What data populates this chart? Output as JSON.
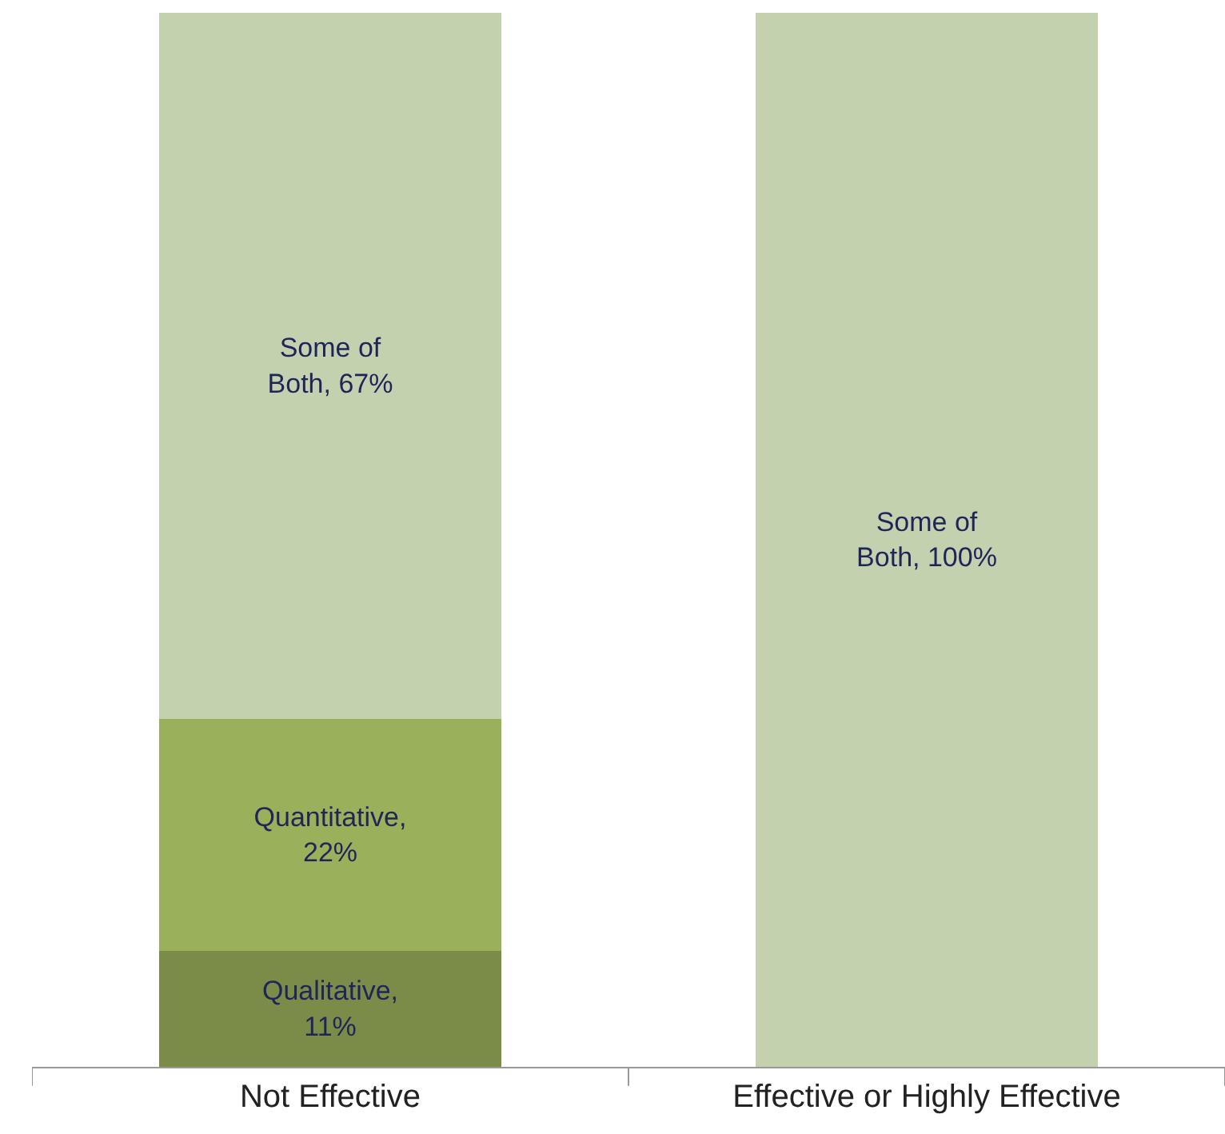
{
  "chart_data": {
    "type": "bar",
    "stacked": true,
    "legend": false,
    "categories": [
      "Not Effective",
      "Effective or Highly Effective"
    ],
    "series": [
      {
        "color": "#7b8c48",
        "values": [
          11,
          null
        ],
        "value_labels": [
          "Qualitative, 11%",
          null
        ]
      },
      {
        "color": "#9bb05a",
        "values": [
          22,
          null
        ],
        "value_labels": [
          "Quantitative, 22%",
          null
        ]
      },
      {
        "color": "#c3d1ae",
        "values": [
          67,
          100
        ],
        "value_labels": [
          "Some of Both, 67%",
          "Some of Both, 100%"
        ]
      }
    ]
  }
}
